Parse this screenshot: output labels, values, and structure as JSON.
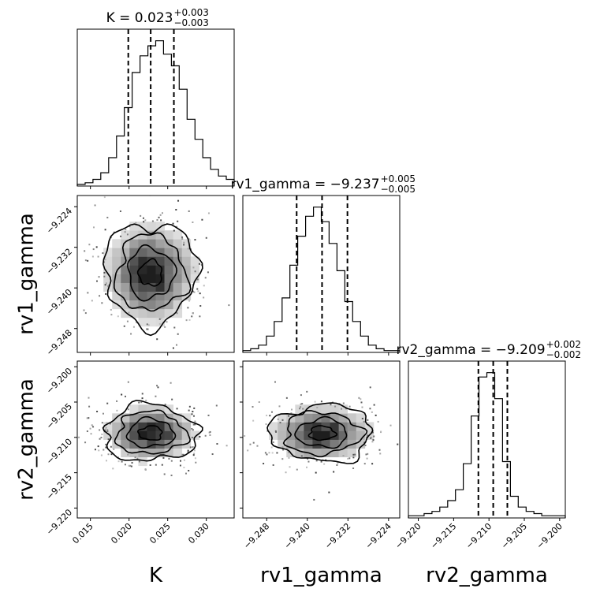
{
  "chart_data": {
    "type": "corner",
    "parameters": [
      "K",
      "rv1_gamma",
      "rv2_gamma"
    ],
    "axis_labels": {
      "x": [
        "K",
        "rv1_gamma",
        "rv2_gamma"
      ],
      "y": [
        "rv1_gamma",
        "rv2_gamma"
      ]
    },
    "titles": [
      {
        "param": "K",
        "prefix": "K = ",
        "value": "0.023",
        "plus": "+0.003",
        "minus": "−0.003"
      },
      {
        "param": "rv1_gamma",
        "prefix": "rv1_gamma = ",
        "value": "−9.237",
        "plus": "+0.005",
        "minus": "−0.005"
      },
      {
        "param": "rv2_gamma",
        "prefix": "rv2_gamma = ",
        "value": "−9.209",
        "plus": "+0.002",
        "minus": "−0.002"
      }
    ],
    "ranges": {
      "K": [
        0.0133,
        0.0336
      ],
      "rv1_gamma": [
        -9.2527,
        -9.2218
      ],
      "rv2_gamma": [
        -9.2214,
        -9.1992
      ]
    },
    "ticks": {
      "K": [
        {
          "v": 0.015,
          "label": "0.015"
        },
        {
          "v": 0.02,
          "label": "0.020"
        },
        {
          "v": 0.025,
          "label": "0.025"
        },
        {
          "v": 0.03,
          "label": "0.030"
        }
      ],
      "rv1_gamma": [
        {
          "v": -9.248,
          "label": "−9.248"
        },
        {
          "v": -9.24,
          "label": "−9.240"
        },
        {
          "v": -9.232,
          "label": "−9.232"
        },
        {
          "v": -9.224,
          "label": "−9.224"
        }
      ],
      "rv2_gamma": [
        {
          "v": -9.22,
          "label": "−9.220"
        },
        {
          "v": -9.215,
          "label": "−9.215"
        },
        {
          "v": -9.21,
          "label": "−9.210"
        },
        {
          "v": -9.205,
          "label": "−9.205"
        },
        {
          "v": -9.2,
          "label": "−9.200"
        }
      ]
    },
    "quantiles": {
      "K": [
        0.0199,
        0.0228,
        0.0258
      ],
      "rv1_gamma": [
        -9.2421,
        -9.2371,
        -9.2321
      ],
      "rv2_gamma": [
        -9.2115,
        -9.2094,
        -9.2074
      ]
    },
    "histograms": {
      "K": {
        "range": [
          0.0133,
          0.0336
        ],
        "counts": [
          1,
          2,
          4,
          8,
          17,
          30,
          47,
          68,
          78,
          84,
          87,
          79,
          72,
          58,
          40,
          28,
          17,
          10,
          6,
          4
        ]
      },
      "rv1_gamma": {
        "range": [
          -9.2527,
          -9.2218
        ],
        "counts": [
          1,
          2,
          4,
          9,
          17,
          30,
          48,
          64,
          75,
          80,
          72,
          60,
          45,
          28,
          17,
          9,
          4,
          2,
          1,
          1
        ]
      },
      "rv2_gamma": {
        "range": [
          -9.2214,
          -9.1992
        ],
        "counts": [
          1,
          1,
          2,
          3,
          5,
          8,
          13,
          25,
          47,
          65,
          67,
          55,
          26,
          10,
          5,
          3,
          2,
          1,
          1,
          1
        ]
      }
    },
    "joint": [
      {
        "row": "rv1_gamma",
        "col": "K",
        "mean": [
          0.0228,
          -9.2371
        ],
        "sd": [
          0.003,
          0.005
        ]
      },
      {
        "row": "rv2_gamma",
        "col": "K",
        "mean": [
          0.0228,
          -9.2094
        ],
        "sd": [
          0.003,
          0.002
        ]
      },
      {
        "row": "rv2_gamma",
        "col": "rv1_gamma",
        "mean": [
          -9.2371,
          -9.2094
        ],
        "sd": [
          0.005,
          0.002
        ]
      }
    ]
  }
}
